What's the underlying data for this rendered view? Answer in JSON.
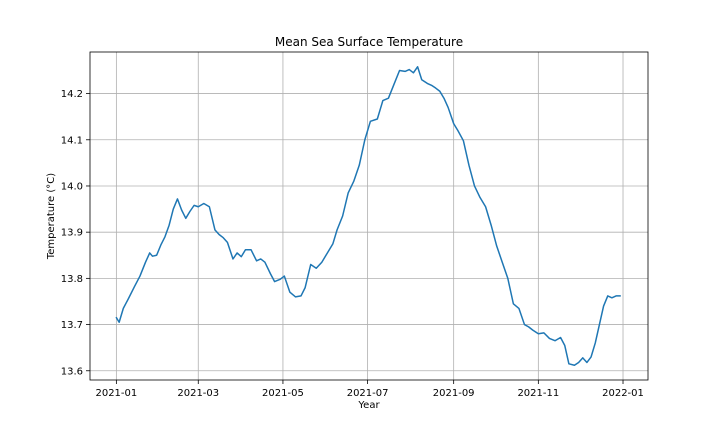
{
  "chart_data": {
    "type": "line",
    "title": "Mean Sea Surface Temperature",
    "xlabel": "Year",
    "ylabel": "Temperature (°C)",
    "xlim": [
      "2020-12-13",
      "2022-01-19"
    ],
    "ylim": [
      13.58,
      14.29
    ],
    "x_ticks": [
      "2021-01",
      "2021-03",
      "2021-05",
      "2021-07",
      "2021-09",
      "2021-11",
      "2022-01"
    ],
    "y_ticks": [
      13.6,
      13.7,
      13.8,
      13.9,
      14.0,
      14.1,
      14.2
    ],
    "y_tick_labels": [
      "13.6",
      "13.7",
      "13.8",
      "13.9",
      "14.0",
      "14.1",
      "14.2"
    ],
    "grid": true,
    "line_color": "#1f77b4",
    "series": [
      {
        "x": [
          "2021-01-01",
          "2021-01-03",
          "2021-01-06",
          "2021-01-10",
          "2021-01-14",
          "2021-01-18",
          "2021-01-22",
          "2021-01-25",
          "2021-01-27",
          "2021-01-30",
          "2021-02-02",
          "2021-02-05",
          "2021-02-08",
          "2021-02-11",
          "2021-02-14",
          "2021-02-17",
          "2021-02-20",
          "2021-02-23",
          "2021-02-26",
          "2021-03-01",
          "2021-03-05",
          "2021-03-09",
          "2021-03-13",
          "2021-03-16",
          "2021-03-19",
          "2021-03-22",
          "2021-03-26",
          "2021-03-29",
          "2021-04-01",
          "2021-04-04",
          "2021-04-08",
          "2021-04-12",
          "2021-04-15",
          "2021-04-18",
          "2021-04-22",
          "2021-04-25",
          "2021-04-29",
          "2021-05-02",
          "2021-05-06",
          "2021-05-10",
          "2021-05-14",
          "2021-05-17",
          "2021-05-21",
          "2021-05-25",
          "2021-05-29",
          "2021-06-02",
          "2021-06-06",
          "2021-06-09",
          "2021-06-13",
          "2021-06-17",
          "2021-06-21",
          "2021-06-25",
          "2021-06-29",
          "2021-07-03",
          "2021-07-08",
          "2021-07-12",
          "2021-07-16",
          "2021-07-20",
          "2021-07-24",
          "2021-07-28",
          "2021-07-31",
          "2021-08-03",
          "2021-08-06",
          "2021-08-09",
          "2021-08-13",
          "2021-08-16",
          "2021-08-19",
          "2021-08-22",
          "2021-08-25",
          "2021-08-28",
          "2021-09-01",
          "2021-09-04",
          "2021-09-08",
          "2021-09-12",
          "2021-09-16",
          "2021-09-20",
          "2021-09-24",
          "2021-09-28",
          "2021-10-02",
          "2021-10-06",
          "2021-10-10",
          "2021-10-14",
          "2021-10-18",
          "2021-10-22",
          "2021-10-25",
          "2021-10-28",
          "2021-11-01",
          "2021-11-05",
          "2021-11-09",
          "2021-11-13",
          "2021-11-17",
          "2021-11-20",
          "2021-11-23",
          "2021-11-27",
          "2021-11-30",
          "2021-12-03",
          "2021-12-06",
          "2021-12-09",
          "2021-12-12",
          "2021-12-15",
          "2021-12-18",
          "2021-12-21",
          "2021-12-24",
          "2021-12-27",
          "2021-12-30"
        ],
        "y": [
          13.715,
          13.705,
          13.735,
          13.758,
          13.782,
          13.805,
          13.835,
          13.855,
          13.848,
          13.85,
          13.872,
          13.89,
          13.915,
          13.95,
          13.972,
          13.948,
          13.93,
          13.945,
          13.958,
          13.955,
          13.962,
          13.955,
          13.905,
          13.895,
          13.888,
          13.878,
          13.842,
          13.855,
          13.847,
          13.862,
          13.862,
          13.838,
          13.842,
          13.835,
          13.81,
          13.793,
          13.798,
          13.805,
          13.77,
          13.76,
          13.762,
          13.78,
          13.83,
          13.822,
          13.835,
          13.855,
          13.875,
          13.905,
          13.935,
          13.985,
          14.01,
          14.045,
          14.1,
          14.14,
          14.145,
          14.185,
          14.19,
          14.22,
          14.25,
          14.248,
          14.252,
          14.245,
          14.258,
          14.23,
          14.222,
          14.218,
          14.212,
          14.205,
          14.19,
          14.17,
          14.135,
          14.12,
          14.098,
          14.045,
          14.0,
          13.975,
          13.955,
          13.915,
          13.87,
          13.835,
          13.8,
          13.745,
          13.735,
          13.7,
          13.695,
          13.688,
          13.68,
          13.682,
          13.67,
          13.665,
          13.672,
          13.655,
          13.615,
          13.612,
          13.618,
          13.628,
          13.618,
          13.63,
          13.66,
          13.7,
          13.74,
          13.762,
          13.758,
          13.762,
          13.762
        ]
      }
    ]
  }
}
